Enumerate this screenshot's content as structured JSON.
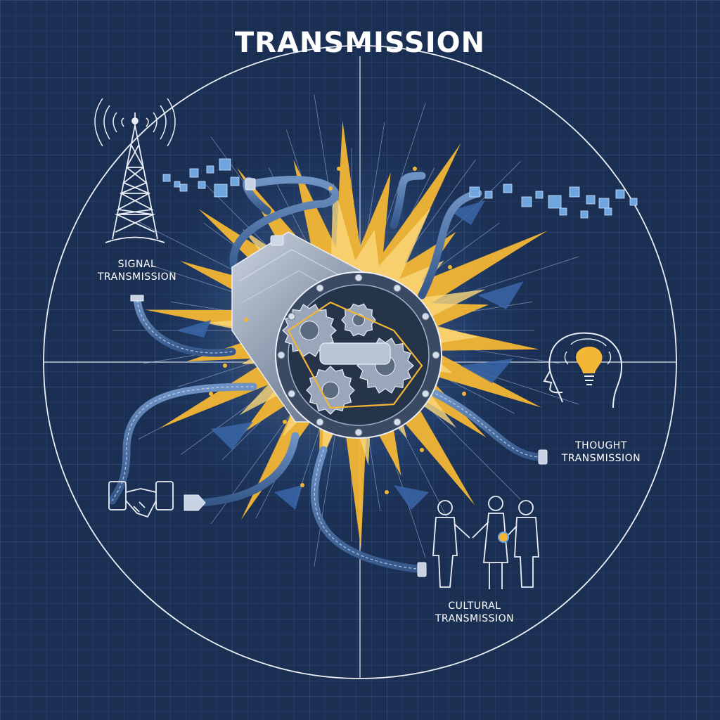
{
  "title": "TRANSMISSION",
  "labels": {
    "signal": {
      "line1": "SIGNAL",
      "line2": "TRANSMISSION"
    },
    "thought": {
      "line1": "THOUGHT",
      "line2": "TRANSMISSION"
    },
    "cultural": {
      "line1": "CULTURAL",
      "line2": "TRANSMISSION"
    }
  },
  "colors": {
    "background": "#1b2f52",
    "grid": "#2c4670",
    "line": "#e9eef7",
    "cable": "#4c6f9f",
    "burst": "#f3b635",
    "metal": "#8b99ad"
  },
  "icons": {
    "signal": "radio-tower-icon",
    "thought": "head-lightbulb-icon",
    "cultural": "people-handshake-icon",
    "connector": "handshake-icon",
    "center": "gearbox-icon"
  }
}
